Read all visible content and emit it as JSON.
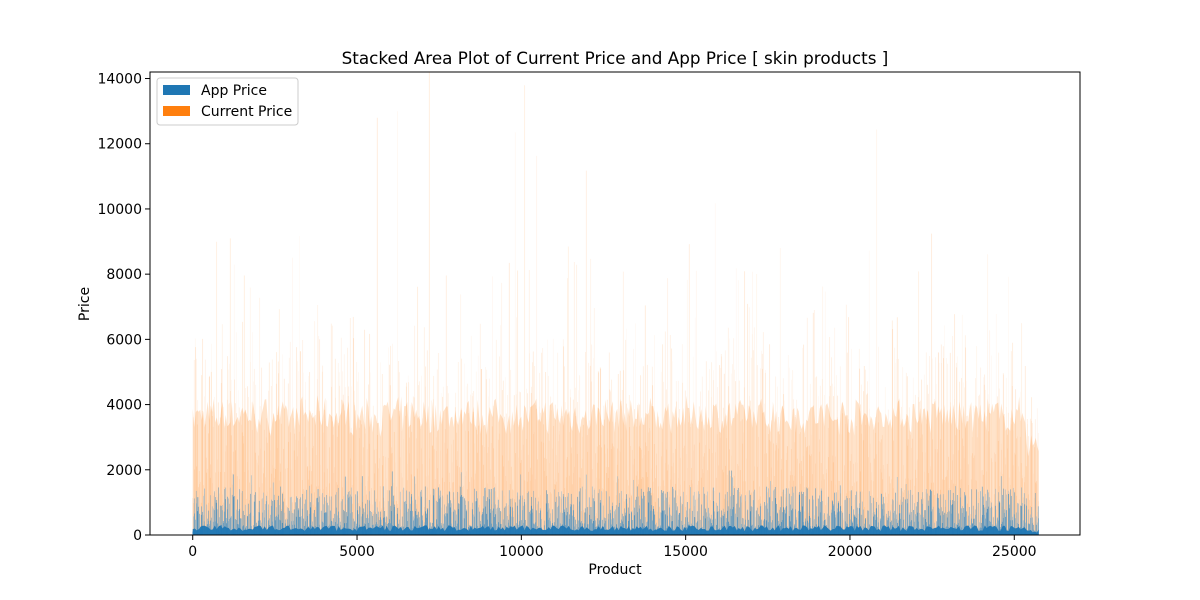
{
  "chart_data": {
    "type": "area",
    "stacked": true,
    "title": "Stacked Area Plot of Current Price and App Price [ skin products ]",
    "xlabel": "Product",
    "ylabel": "Price",
    "xlim": [
      -1300,
      27000
    ],
    "ylim": [
      0,
      14200
    ],
    "xticks": [
      0,
      5000,
      10000,
      15000,
      20000,
      25000
    ],
    "yticks": [
      0,
      2000,
      4000,
      6000,
      8000,
      10000,
      12000,
      14000
    ],
    "legend": {
      "placement": "upper-left"
    },
    "x_range": [
      0,
      25750
    ],
    "series": [
      {
        "name": "App Price",
        "color": "#1f77b4",
        "typical_range": [
          100,
          1500
        ],
        "peak": 2000
      },
      {
        "name": "Current Price",
        "color": "#ff7f0e",
        "typical_range": [
          300,
          5000
        ],
        "peak": 14000
      }
    ],
    "grid": false
  }
}
